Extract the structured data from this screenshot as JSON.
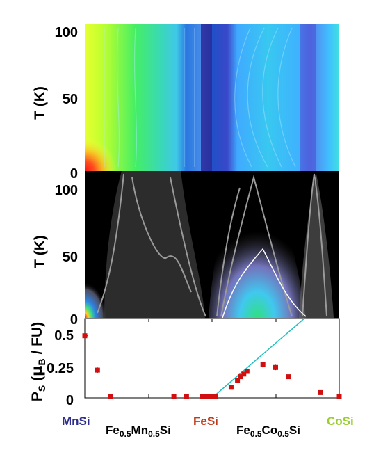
{
  "panels": {
    "top": {
      "ylabel": "T (K)",
      "yticks": [
        "0",
        "50",
        "100"
      ],
      "ylim": [
        0,
        105
      ],
      "colormap": "rainbow"
    },
    "middle": {
      "ylabel": "T (K)",
      "yticks": [
        "0",
        "50",
        "100"
      ],
      "ylim": [
        0,
        105
      ],
      "colormap": "rainbow-on-black"
    }
  },
  "compounds": [
    {
      "label": "MnSi",
      "color": "#2e2e8c"
    },
    {
      "label": "Fe0.5Mn0.5Si",
      "color": "#000000"
    },
    {
      "label": "FeSi",
      "color": "#c0391b"
    },
    {
      "label": "Fe0.5Co0.5Si",
      "color": "#000000"
    },
    {
      "label": "CoSi",
      "color": "#9acd32"
    }
  ],
  "colors": {
    "marker": "#d01010",
    "fit_line": "#20c0c0",
    "contour": "#9a9a9a",
    "white_contour": "#ffffff"
  },
  "chart_data": {
    "type": "scatter",
    "ylabel": "P_S (μB / FU)",
    "yticks": [
      "0",
      "0.25",
      "0.5"
    ],
    "ylim": [
      0,
      0.6
    ],
    "xlim": [
      0,
      4
    ],
    "x_note": "composition axis: 0 = MnSi, 1 = Fe0.5Mn0.5Si, 2 = FeSi, 3 = Fe0.5Co0.5Si, 4 = CoSi",
    "series": [
      {
        "points": [
          {
            "x": 0.0,
            "y": 0.47
          },
          {
            "x": 0.2,
            "y": 0.21
          },
          {
            "x": 0.4,
            "y": 0.01
          },
          {
            "x": 1.4,
            "y": 0.01
          },
          {
            "x": 1.6,
            "y": 0.01
          },
          {
            "x": 1.85,
            "y": 0.01
          },
          {
            "x": 1.9,
            "y": 0.01
          },
          {
            "x": 1.95,
            "y": 0.01
          },
          {
            "x": 2.0,
            "y": 0.01
          },
          {
            "x": 2.05,
            "y": 0.01
          },
          {
            "x": 2.3,
            "y": 0.08
          },
          {
            "x": 2.4,
            "y": 0.13
          },
          {
            "x": 2.45,
            "y": 0.16
          },
          {
            "x": 2.5,
            "y": 0.18
          },
          {
            "x": 2.55,
            "y": 0.2
          },
          {
            "x": 2.8,
            "y": 0.25
          },
          {
            "x": 3.0,
            "y": 0.23
          },
          {
            "x": 3.2,
            "y": 0.16
          },
          {
            "x": 3.7,
            "y": 0.04
          },
          {
            "x": 4.0,
            "y": 0.01
          }
        ],
        "errors": [
          0.015,
          0.02,
          0.01,
          0.01,
          0.01,
          0.01,
          0.01,
          0.01,
          0.01,
          0.01,
          0.01,
          0.01,
          0.01,
          0.01,
          0.01,
          0.02,
          0.02,
          0.015,
          0.01,
          0.01
        ]
      }
    ],
    "fit_line": {
      "x": [
        2.0,
        3.45
      ],
      "y": [
        0.0,
        0.6
      ]
    }
  }
}
